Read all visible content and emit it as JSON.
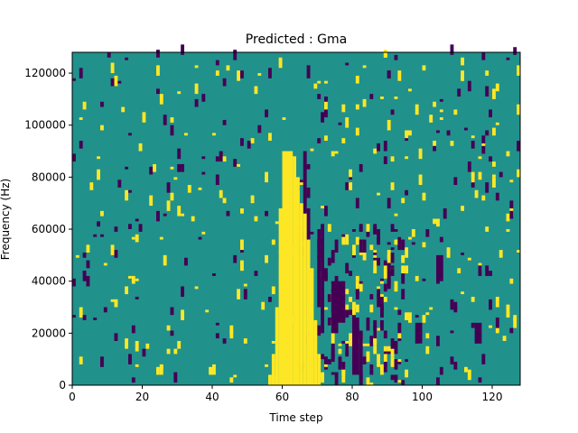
{
  "chart_data": {
    "type": "heatmap",
    "title": "Predicted : Gma",
    "xlabel": "Time step",
    "ylabel": "Frequency (Hz)",
    "xlim": [
      0,
      128
    ],
    "ylim": [
      0,
      128000
    ],
    "xticks": [
      0,
      20,
      40,
      60,
      80,
      100,
      120
    ],
    "yticks": [
      0,
      20000,
      40000,
      60000,
      80000,
      100000,
      120000
    ],
    "n_time_steps": 128,
    "n_freq_bins": 128,
    "colormap": "viridis",
    "colors": {
      "background": "#21918c",
      "high": "#fde725",
      "low": "#440154"
    },
    "grid": false,
    "main_band": {
      "description_value": "yellow",
      "segments": [
        {
          "x": [
            60,
            63
          ],
          "y": [
            0,
            90000
          ]
        },
        {
          "x": [
            63,
            64
          ],
          "y": [
            0,
            88000
          ]
        },
        {
          "x": [
            64,
            65
          ],
          "y": [
            0,
            80000
          ]
        },
        {
          "x": [
            65,
            66
          ],
          "y": [
            0,
            70000
          ]
        },
        {
          "x": [
            66,
            67
          ],
          "y": [
            0,
            66000
          ]
        },
        {
          "x": [
            67,
            68
          ],
          "y": [
            0,
            56000
          ]
        },
        {
          "x": [
            59,
            60
          ],
          "y": [
            0,
            68000
          ]
        },
        {
          "x": [
            58,
            59
          ],
          "y": [
            0,
            30000
          ]
        },
        {
          "x": [
            57,
            58
          ],
          "y": [
            0,
            12000
          ]
        },
        {
          "x": [
            56,
            57
          ],
          "y": [
            0,
            4000
          ]
        },
        {
          "x": [
            68,
            69
          ],
          "y": [
            0,
            45000
          ]
        },
        {
          "x": [
            69,
            70
          ],
          "y": [
            0,
            25000
          ]
        },
        {
          "x": [
            70,
            71
          ],
          "y": [
            0,
            12000
          ]
        }
      ]
    },
    "dark_patches": [
      {
        "x": [
          66,
          67
        ],
        "y": [
          60000,
          90000
        ]
      },
      {
        "x": [
          67,
          68
        ],
        "y": [
          44000,
          68000
        ]
      },
      {
        "x": [
          70,
          71
        ],
        "y": [
          30000,
          60000
        ]
      },
      {
        "x": [
          71,
          72
        ],
        "y": [
          20000,
          56000
        ]
      },
      {
        "x": [
          74,
          76
        ],
        "y": [
          20000,
          40000
        ]
      },
      {
        "x": [
          76,
          78
        ],
        "y": [
          24000,
          40000
        ]
      },
      {
        "x": [
          80,
          82
        ],
        "y": [
          4000,
          26000
        ]
      },
      {
        "x": [
          82,
          83
        ],
        "y": [
          0,
          20000
        ]
      },
      {
        "x": [
          98,
          100
        ],
        "y": [
          16000,
          24000
        ]
      },
      {
        "x": [
          104,
          106
        ],
        "y": [
          40000,
          50000
        ]
      },
      {
        "x": [
          115,
          117
        ],
        "y": [
          16000,
          24000
        ]
      }
    ],
    "noise_seed": 7
  }
}
